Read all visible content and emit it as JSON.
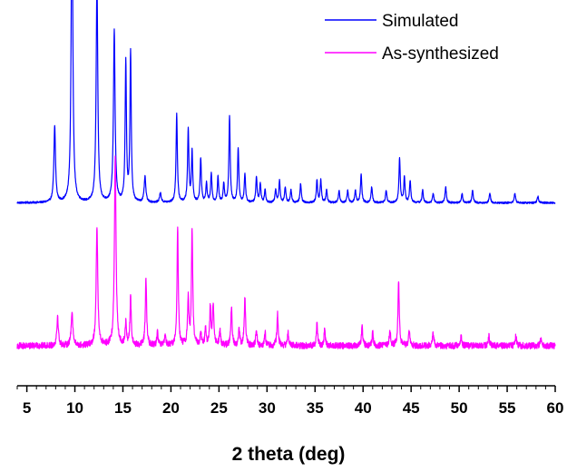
{
  "chart_data": {
    "type": "line",
    "title": "",
    "xlabel": "2 theta (deg)",
    "ylabel": "",
    "xlim": [
      4,
      60
    ],
    "x_ticks": [
      5,
      10,
      15,
      20,
      25,
      30,
      35,
      40,
      45,
      50,
      55,
      60
    ],
    "y_ticks_shown": false,
    "grid": false,
    "legend_position": "top-right",
    "series": [
      {
        "name": "Simulated",
        "color": "#0000ff",
        "offset": 55,
        "noise": 0.6,
        "peaks": [
          [
            7.9,
            24,
            0.1
          ],
          [
            9.7,
            100,
            0.1
          ],
          [
            12.3,
            70,
            0.1
          ],
          [
            14.1,
            54,
            0.1
          ],
          [
            15.3,
            44,
            0.08
          ],
          [
            15.8,
            47,
            0.08
          ],
          [
            17.3,
            8,
            0.1
          ],
          [
            18.9,
            3,
            0.1
          ],
          [
            20.6,
            28,
            0.08
          ],
          [
            21.8,
            23,
            0.08
          ],
          [
            22.2,
            16,
            0.08
          ],
          [
            23.1,
            14,
            0.08
          ],
          [
            23.7,
            6,
            0.08
          ],
          [
            24.2,
            9,
            0.08
          ],
          [
            24.9,
            8,
            0.08
          ],
          [
            25.5,
            6,
            0.08
          ],
          [
            26.1,
            27,
            0.08
          ],
          [
            27.0,
            17,
            0.08
          ],
          [
            27.7,
            9,
            0.08
          ],
          [
            28.9,
            8,
            0.08
          ],
          [
            29.3,
            6,
            0.08
          ],
          [
            29.8,
            4,
            0.08
          ],
          [
            30.9,
            4,
            0.08
          ],
          [
            31.3,
            7,
            0.08
          ],
          [
            31.9,
            5,
            0.08
          ],
          [
            32.5,
            4,
            0.08
          ],
          [
            33.5,
            6,
            0.08
          ],
          [
            35.2,
            7,
            0.08
          ],
          [
            35.6,
            7,
            0.08
          ],
          [
            36.2,
            4,
            0.08
          ],
          [
            37.5,
            4,
            0.08
          ],
          [
            38.4,
            4,
            0.08
          ],
          [
            39.2,
            4,
            0.08
          ],
          [
            39.8,
            9,
            0.08
          ],
          [
            40.9,
            5,
            0.08
          ],
          [
            42.4,
            4,
            0.08
          ],
          [
            43.8,
            14,
            0.08
          ],
          [
            44.3,
            8,
            0.08
          ],
          [
            44.9,
            7,
            0.08
          ],
          [
            46.2,
            4,
            0.08
          ],
          [
            47.3,
            3,
            0.08
          ],
          [
            48.6,
            5,
            0.08
          ],
          [
            50.3,
            3,
            0.08
          ],
          [
            51.4,
            4,
            0.08
          ],
          [
            53.2,
            3,
            0.08
          ],
          [
            55.8,
            3,
            0.08
          ],
          [
            58.2,
            2,
            0.08
          ]
        ]
      },
      {
        "name": "As-synthesized",
        "color": "#ff00ff",
        "offset": 10,
        "noise": 2,
        "peaks": [
          [
            8.2,
            9,
            0.1
          ],
          [
            9.7,
            11,
            0.1
          ],
          [
            12.3,
            37,
            0.1
          ],
          [
            14.2,
            60,
            0.1
          ],
          [
            15.3,
            7,
            0.08
          ],
          [
            15.8,
            15,
            0.08
          ],
          [
            17.4,
            21,
            0.08
          ],
          [
            18.6,
            4,
            0.08
          ],
          [
            19.4,
            3,
            0.08
          ],
          [
            20.7,
            37,
            0.08
          ],
          [
            21.8,
            15,
            0.08
          ],
          [
            22.2,
            37,
            0.08
          ],
          [
            23.1,
            4,
            0.08
          ],
          [
            23.6,
            5,
            0.08
          ],
          [
            24.1,
            12,
            0.08
          ],
          [
            24.4,
            13,
            0.08
          ],
          [
            25.1,
            5,
            0.08
          ],
          [
            26.3,
            12,
            0.08
          ],
          [
            27.1,
            5,
            0.08
          ],
          [
            27.7,
            15,
            0.08
          ],
          [
            28.9,
            5,
            0.08
          ],
          [
            29.8,
            4,
            0.08
          ],
          [
            31.1,
            10,
            0.08
          ],
          [
            32.2,
            4,
            0.08
          ],
          [
            35.2,
            7,
            0.08
          ],
          [
            36.0,
            5,
            0.08
          ],
          [
            39.9,
            6,
            0.08
          ],
          [
            41.0,
            4,
            0.08
          ],
          [
            42.8,
            5,
            0.08
          ],
          [
            43.7,
            20,
            0.08
          ],
          [
            44.8,
            5,
            0.08
          ],
          [
            47.3,
            4,
            0.08
          ],
          [
            50.2,
            3,
            0.08
          ],
          [
            53.1,
            3,
            0.08
          ],
          [
            55.9,
            3,
            0.08
          ],
          [
            58.5,
            2,
            0.08
          ]
        ]
      }
    ]
  }
}
